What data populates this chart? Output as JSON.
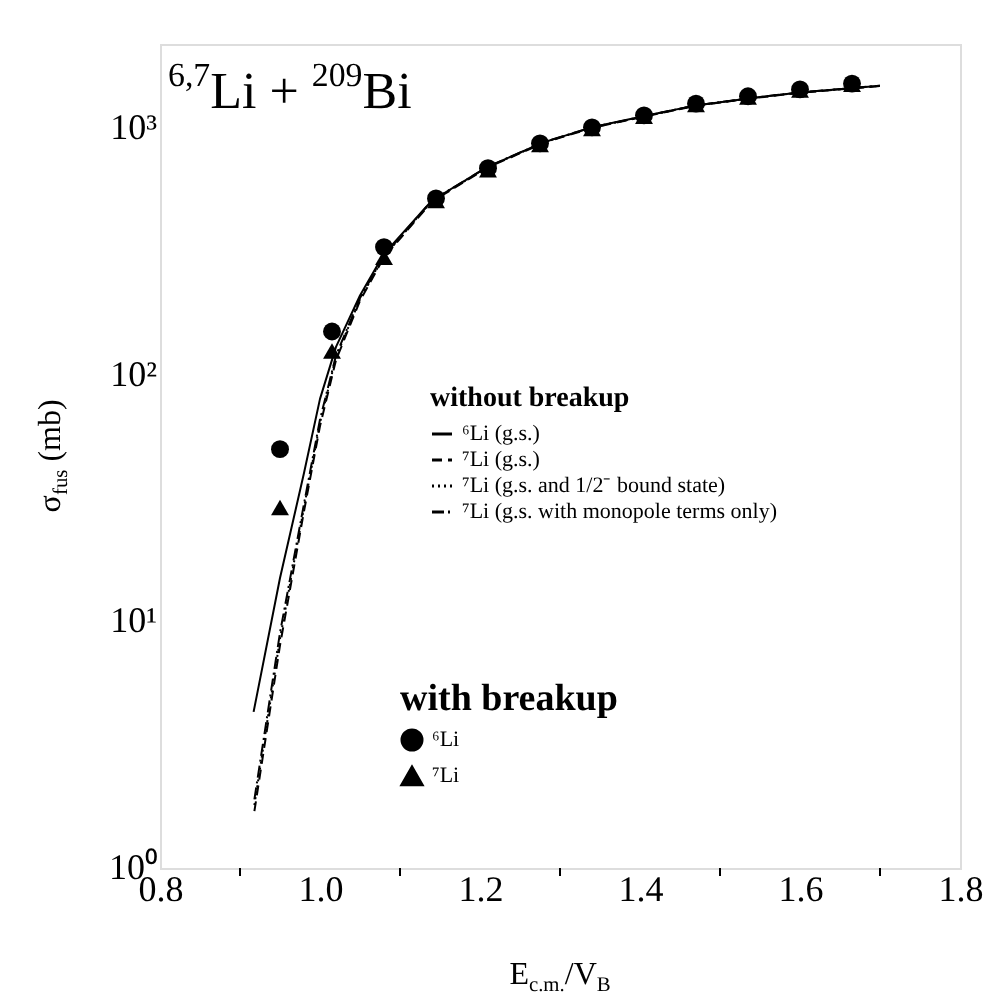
{
  "chart_data": {
    "type": "line",
    "title": "$^{6,7}$Li + $^{209}$Bi",
    "xlabel": "E$_{c.m.}$/V$_{B}$",
    "ylabel": "σ$_{fus}$ (mb)",
    "legend_title": "without breakup",
    "annotations": [
      "with breakup"
    ],
    "xlim": [
      0.8,
      1.8
    ],
    "ylim": [
      1,
      2200
    ],
    "log": "y",
    "grid": false,
    "legend": "right",
    "xticks": [
      0.8,
      {
        "value": 0.9,
        "label": null
      },
      {
        "value": 1.0,
        "label": "1.0"
      },
      {
        "value": 1.1,
        "label": null
      },
      1.2,
      {
        "value": 1.3,
        "label": null
      },
      1.4,
      {
        "value": 1.5,
        "label": null
      },
      1.6,
      {
        "value": 1.7,
        "label": null
      },
      1.8
    ],
    "yticks": [
      {
        "value": 1,
        "label": "10⁰"
      },
      {
        "value": 10,
        "label": "10¹"
      },
      {
        "value": 100,
        "label": "10²"
      },
      {
        "value": 1000,
        "label": "10³"
      }
    ],
    "series": [
      {
        "name": "⁶Li (g.s.)",
        "line_style": "solid",
        "color": "#000000",
        "x": [
          0.917,
          0.95,
          0.98,
          1.0,
          1.02,
          1.05,
          1.08,
          1.14,
          1.21,
          1.28,
          1.34,
          1.41,
          1.47,
          1.54,
          1.6,
          1.7
        ],
        "values": [
          4.3,
          15,
          40,
          80,
          130,
          210,
          310,
          510,
          700,
          880,
          1010,
          1130,
          1240,
          1330,
          1400,
          1490
        ]
      },
      {
        "name": "⁷Li (g.s.)",
        "line_style": "dashed",
        "color": "#000000",
        "x": [
          0.918,
          0.95,
          0.98,
          1.0,
          1.02,
          1.05,
          1.08,
          1.14,
          1.21,
          1.28,
          1.34,
          1.41,
          1.47,
          1.54,
          1.6,
          1.7
        ],
        "values": [
          1.7,
          8,
          28,
          62,
          115,
          200,
          300,
          505,
          695,
          875,
          1005,
          1125,
          1235,
          1325,
          1395,
          1485
        ]
      },
      {
        "name": "⁷Li (g.s. and 1/2⁻ bound state)",
        "line_style": "dotted",
        "color": "#000000",
        "x": [
          0.918,
          0.95,
          0.98,
          1.0,
          1.02,
          1.05,
          1.08,
          1.14,
          1.21,
          1.28,
          1.34,
          1.41,
          1.47,
          1.54,
          1.6,
          1.7
        ],
        "values": [
          1.8,
          8.5,
          29,
          64,
          118,
          203,
          303,
          508,
          698,
          878,
          1008,
          1128,
          1238,
          1328,
          1398,
          1488
        ]
      },
      {
        "name": "⁷Li (g.s. with monopole terms only)",
        "line_style": "dashdot",
        "color": "#000000",
        "x": [
          0.918,
          0.95,
          0.98,
          1.0,
          1.02,
          1.05,
          1.08,
          1.14,
          1.21,
          1.28,
          1.34,
          1.41,
          1.47,
          1.54,
          1.6,
          1.7
        ],
        "values": [
          1.9,
          9,
          30,
          66,
          120,
          205,
          305,
          510,
          700,
          880,
          1010,
          1130,
          1240,
          1330,
          1400,
          1490
        ]
      },
      {
        "name": "⁶Li",
        "type": "scatter",
        "marker": "circle",
        "color": "#000000",
        "x": [
          0.95,
          1.015,
          1.08,
          1.145,
          1.21,
          1.275,
          1.34,
          1.405,
          1.47,
          1.535,
          1.6,
          1.665
        ],
        "values": [
          50,
          150,
          330,
          520,
          690,
          870,
          1010,
          1130,
          1260,
          1350,
          1440,
          1520
        ]
      },
      {
        "name": "⁷Li",
        "type": "scatter",
        "marker": "triangle",
        "color": "#000000",
        "x": [
          0.95,
          1.015,
          1.08,
          1.145,
          1.21,
          1.275,
          1.34,
          1.405,
          1.47,
          1.535,
          1.6,
          1.665
        ],
        "values": [
          29,
          125,
          300,
          510,
          680,
          860,
          1000,
          1120,
          1250,
          1340,
          1430,
          1510
        ]
      }
    ]
  }
}
